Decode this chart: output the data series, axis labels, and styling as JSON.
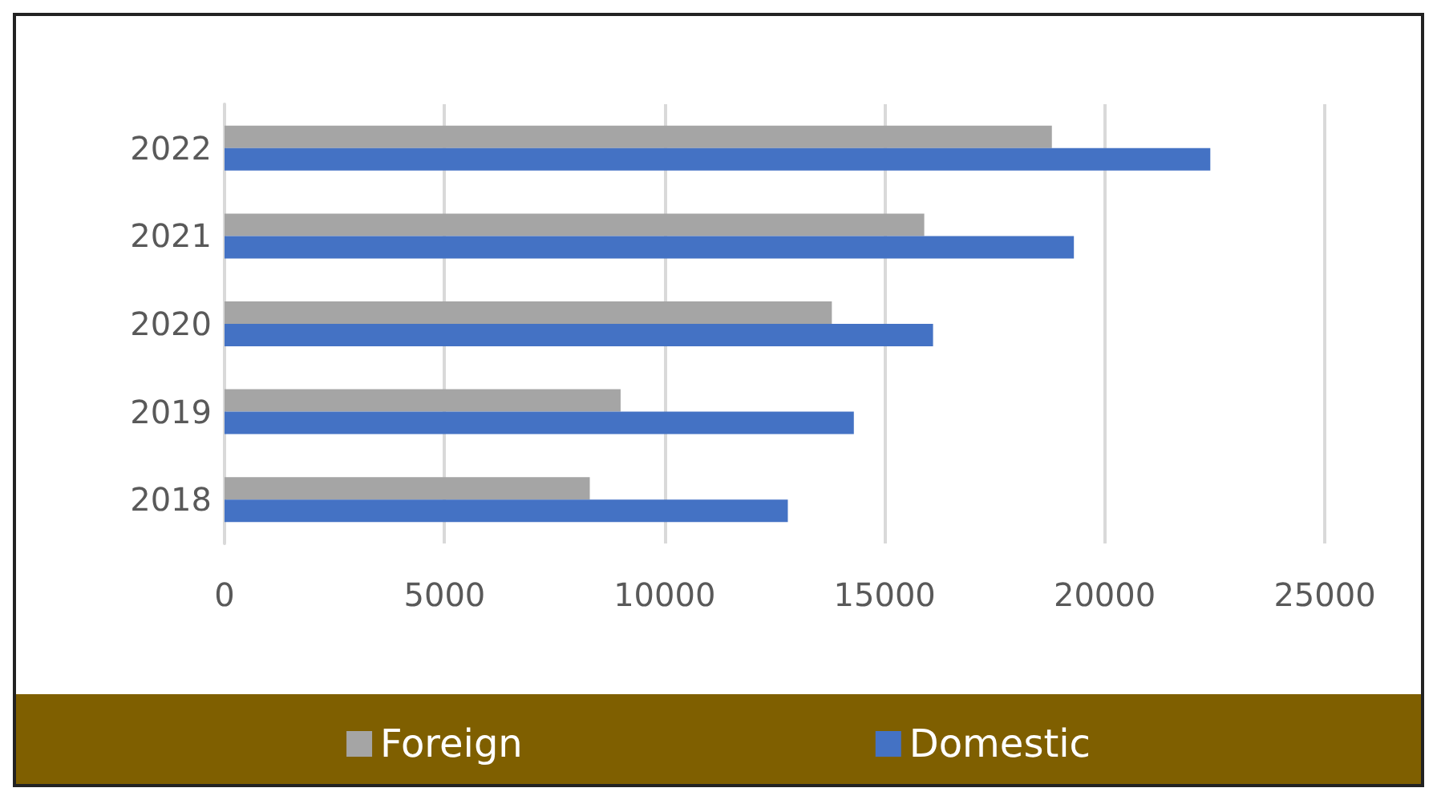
{
  "chart_data": {
    "type": "bar",
    "orientation": "horizontal",
    "categories": [
      "2022",
      "2021",
      "2020",
      "2019",
      "2018"
    ],
    "series": [
      {
        "name": "Foreign",
        "color": "#a5a5a5",
        "values": [
          18800,
          15900,
          13800,
          9000,
          8300
        ]
      },
      {
        "name": "Domestic",
        "color": "#4472c4",
        "values": [
          22400,
          19300,
          16100,
          14300,
          12800
        ]
      }
    ],
    "xlim": [
      0,
      25000
    ],
    "xticks": [
      0,
      5000,
      10000,
      15000,
      20000,
      25000
    ],
    "grid": "x",
    "legend": "bottom"
  }
}
